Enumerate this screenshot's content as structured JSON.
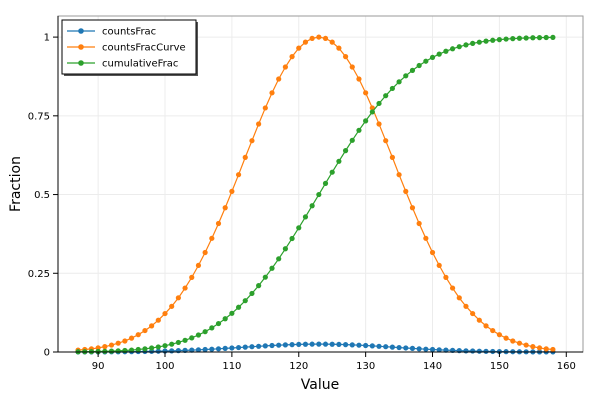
{
  "chart_data": {
    "type": "line",
    "xlabel": "Value",
    "ylabel": "Fraction",
    "x": [
      87,
      88,
      89,
      90,
      91,
      92,
      93,
      94,
      95,
      96,
      97,
      98,
      99,
      100,
      101,
      102,
      103,
      104,
      105,
      106,
      107,
      108,
      109,
      110,
      111,
      112,
      113,
      114,
      115,
      116,
      117,
      118,
      119,
      120,
      121,
      122,
      123,
      124,
      125,
      126,
      127,
      128,
      129,
      130,
      131,
      132,
      133,
      134,
      135,
      136,
      137,
      138,
      139,
      140,
      141,
      142,
      143,
      144,
      145,
      146,
      147,
      148,
      149,
      150,
      151,
      152,
      153,
      154,
      155,
      156,
      157,
      158
    ],
    "series": [
      {
        "name": "countsFrac",
        "color": "#1f77b4",
        "values": [
          0.0002,
          0.0002,
          0.0003,
          0.0003,
          0.0004,
          0.0006,
          0.0007,
          0.0009,
          0.0011,
          0.0014,
          0.0017,
          0.0021,
          0.0025,
          0.0031,
          0.0036,
          0.0043,
          0.0051,
          0.0059,
          0.0069,
          0.0079,
          0.009,
          0.0102,
          0.0115,
          0.0128,
          0.0141,
          0.0155,
          0.0168,
          0.0181,
          0.0194,
          0.0206,
          0.0217,
          0.0226,
          0.0235,
          0.0241,
          0.0246,
          0.0249,
          0.025,
          0.0249,
          0.0246,
          0.0241,
          0.0235,
          0.0226,
          0.0217,
          0.0206,
          0.0194,
          0.0181,
          0.0168,
          0.0155,
          0.0141,
          0.0128,
          0.0115,
          0.0102,
          0.009,
          0.0079,
          0.0069,
          0.0059,
          0.0051,
          0.0043,
          0.0036,
          0.0031,
          0.0025,
          0.0021,
          0.0017,
          0.0014,
          0.0011,
          0.0009,
          0.0007,
          0.0006,
          0.0004,
          0.0003,
          0.0003,
          0.0002
        ]
      },
      {
        "name": "countsFracCurve",
        "color": "#ff7f0e",
        "values": [
          0.006,
          0.008,
          0.01,
          0.013,
          0.017,
          0.022,
          0.028,
          0.035,
          0.044,
          0.055,
          0.068,
          0.083,
          0.101,
          0.122,
          0.145,
          0.172,
          0.203,
          0.237,
          0.275,
          0.316,
          0.361,
          0.408,
          0.458,
          0.51,
          0.563,
          0.618,
          0.671,
          0.724,
          0.775,
          0.823,
          0.867,
          0.905,
          0.938,
          0.965,
          0.984,
          0.996,
          1,
          0.996,
          0.984,
          0.965,
          0.938,
          0.905,
          0.867,
          0.823,
          0.775,
          0.724,
          0.671,
          0.618,
          0.563,
          0.51,
          0.458,
          0.408,
          0.361,
          0.316,
          0.275,
          0.237,
          0.203,
          0.172,
          0.145,
          0.122,
          0.101,
          0.083,
          0.068,
          0.055,
          0.044,
          0.035,
          0.028,
          0.022,
          0.017,
          0.013,
          0.01,
          0.008
        ]
      },
      {
        "name": "cumulativeFrac",
        "color": "#2ca02c",
        "values": [
          0.0007,
          0.0009,
          0.0012,
          0.0016,
          0.0021,
          0.0028,
          0.0037,
          0.0048,
          0.0062,
          0.008,
          0.0101,
          0.0128,
          0.0161,
          0.02,
          0.0248,
          0.0304,
          0.0371,
          0.0449,
          0.054,
          0.0645,
          0.0766,
          0.0903,
          0.1056,
          0.1229,
          0.142,
          0.163,
          0.186,
          0.2107,
          0.2376,
          0.266,
          0.296,
          0.3278,
          0.3605,
          0.3944,
          0.429,
          0.4645,
          0.5,
          0.5355,
          0.571,
          0.6056,
          0.6395,
          0.6722,
          0.704,
          0.734,
          0.7624,
          0.7893,
          0.814,
          0.837,
          0.858,
          0.8771,
          0.8944,
          0.9097,
          0.9234,
          0.9355,
          0.946,
          0.9551,
          0.9629,
          0.9696,
          0.9752,
          0.98,
          0.9839,
          0.9872,
          0.9899,
          0.992,
          0.9938,
          0.9952,
          0.9963,
          0.9972,
          0.9979,
          0.9984,
          0.9988,
          0.9991
        ]
      }
    ],
    "xlim": [
      84,
      162.5
    ],
    "xticks": [
      90,
      100,
      110,
      120,
      130,
      140,
      150,
      160
    ],
    "ylim": [
      0,
      1.067
    ],
    "yticks": [
      0,
      0.25,
      0.5,
      0.75,
      1
    ],
    "grid": true,
    "legend": "upper left",
    "markers": true
  }
}
